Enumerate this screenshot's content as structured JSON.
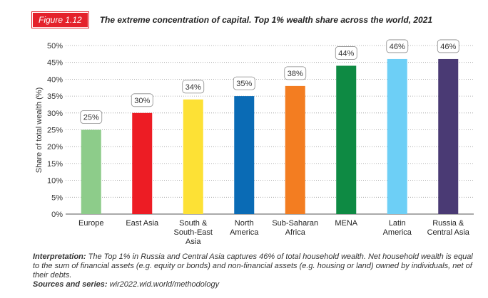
{
  "figure_label": "Figure 1.12",
  "figure_title": "The extreme concentration of capital. Top 1% wealth share across the world, 2021",
  "chart_data": {
    "type": "bar",
    "title": "The extreme concentration of capital. Top 1% wealth share across the world, 2021",
    "ylabel": "Share of total wealth (%)",
    "xlabel": "",
    "ylim": [
      0,
      50
    ],
    "yticks": [
      0,
      5,
      10,
      15,
      20,
      25,
      30,
      35,
      40,
      45,
      50
    ],
    "ytick_labels": [
      "0%",
      "5%",
      "10%",
      "15%",
      "20%",
      "25%",
      "30%",
      "35%",
      "40%",
      "45%",
      "50%"
    ],
    "grid": true,
    "categories": [
      [
        "Europe"
      ],
      [
        "East Asia"
      ],
      [
        "South &",
        "South-East",
        "Asia"
      ],
      [
        "North",
        "America"
      ],
      [
        "Sub-Saharan",
        "Africa"
      ],
      [
        "MENA"
      ],
      [
        "Latin",
        "America"
      ],
      [
        "Russia &",
        "Central Asia"
      ]
    ],
    "values": [
      25,
      30,
      34,
      35,
      38,
      44,
      46,
      46
    ],
    "data_labels": [
      "25%",
      "30%",
      "34%",
      "35%",
      "38%",
      "44%",
      "46%",
      "46%"
    ],
    "colors": [
      "#8dcc8a",
      "#ed1c24",
      "#fde135",
      "#0a6bb5",
      "#f37d21",
      "#0e8a43",
      "#6dcff6",
      "#4a3a74"
    ]
  },
  "interpretation_label": "Interpretation:",
  "interpretation_text": "The Top 1% in Russia and Central Asia captures 46% of total household wealth. Net household wealth is equal to the sum of financial assets (e.g. equity or bonds) and non-financial assets (e.g. housing or land) owned by individuals, net of their debts.",
  "sources_label": "Sources and series:",
  "sources_text": "wir2022.wid.world/methodology"
}
